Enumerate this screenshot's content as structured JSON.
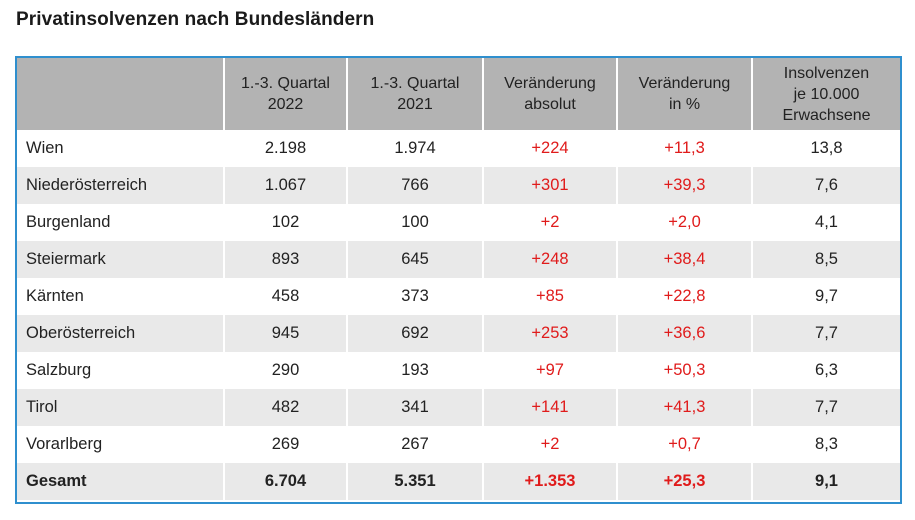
{
  "title": "Privatinsolvenzen nach Bundesländern",
  "columns": [
    "",
    "1.-3. Quartal\n2022",
    "1.-3. Quartal\n2021",
    "Veränderung\nabsolut",
    "Veränderung\nin %",
    "Insolvenzen\nje 10.000\nErwachsene"
  ],
  "rows": [
    [
      "Wien",
      "2.198",
      "1.974",
      "+224",
      "+11,3",
      "13,8"
    ],
    [
      "Niederösterreich",
      "1.067",
      "766",
      "+301",
      "+39,3",
      "7,6"
    ],
    [
      "Burgenland",
      "102",
      "100",
      "+2",
      "+2,0",
      "4,1"
    ],
    [
      "Steiermark",
      "893",
      "645",
      "+248",
      "+38,4",
      "8,5"
    ],
    [
      "Kärnten",
      "458",
      "373",
      "+85",
      "+22,8",
      "9,7"
    ],
    [
      "Oberösterreich",
      "945",
      "692",
      "+253",
      "+36,6",
      "7,7"
    ],
    [
      "Salzburg",
      "290",
      "193",
      "+97",
      "+50,3",
      "6,3"
    ],
    [
      "Tirol",
      "482",
      "341",
      "+141",
      "+41,3",
      "7,7"
    ],
    [
      "Vorarlberg",
      "269",
      "267",
      "+2",
      "+0,7",
      "8,3"
    ]
  ],
  "total": [
    "Gesamt",
    "6.704",
    "5.351",
    "+1.353",
    "+25,3",
    "9,1"
  ],
  "colors": {
    "header_bg": "#b3b3b3",
    "stripe_bg": "#e9e9e9",
    "positive_change": "#e01b1b",
    "frame_border": "#2f8fce"
  }
}
